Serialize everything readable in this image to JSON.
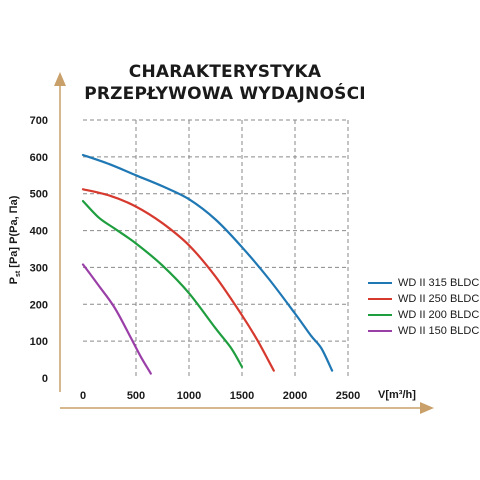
{
  "chart_data": {
    "type": "line",
    "title_lines": [
      "CHARAKTERYSTYKA",
      "PRZEPŁYWOWA WYDAJNOŚCI"
    ],
    "xlabel": "V[m³/h]",
    "ylabel_main": "P",
    "ylabel_sub": "st",
    "ylabel_rest": "[Pa] P(Pa, Па)",
    "xlim": [
      0,
      2500
    ],
    "ylim": [
      0,
      700
    ],
    "x_ticks": [
      0,
      500,
      1000,
      1500,
      2000,
      2500
    ],
    "y_ticks": [
      0,
      100,
      200,
      300,
      400,
      500,
      600,
      700
    ],
    "grid": true,
    "legend_position": "right",
    "series": [
      {
        "name": "WD II 315 BLDC",
        "color": "#1f78b4",
        "points": [
          [
            0,
            605
          ],
          [
            250,
            580
          ],
          [
            500,
            550
          ],
          [
            750,
            520
          ],
          [
            1000,
            485
          ],
          [
            1250,
            430
          ],
          [
            1500,
            355
          ],
          [
            1750,
            270
          ],
          [
            2000,
            175
          ],
          [
            2150,
            115
          ],
          [
            2250,
            80
          ],
          [
            2350,
            20
          ]
        ]
      },
      {
        "name": "WD II 250 BLDC",
        "color": "#d63a2f",
        "points": [
          [
            0,
            512
          ],
          [
            250,
            495
          ],
          [
            500,
            465
          ],
          [
            750,
            420
          ],
          [
            1000,
            360
          ],
          [
            1250,
            275
          ],
          [
            1500,
            170
          ],
          [
            1650,
            100
          ],
          [
            1800,
            20
          ]
        ]
      },
      {
        "name": "WD II 200 BLDC",
        "color": "#1f9e3f",
        "points": [
          [
            0,
            480
          ],
          [
            150,
            435
          ],
          [
            300,
            405
          ],
          [
            500,
            365
          ],
          [
            750,
            305
          ],
          [
            1000,
            230
          ],
          [
            1250,
            135
          ],
          [
            1400,
            80
          ],
          [
            1500,
            30
          ]
        ]
      },
      {
        "name": "WD II 150 BLDC",
        "color": "#9b3fa8",
        "points": [
          [
            0,
            308
          ],
          [
            150,
            250
          ],
          [
            300,
            190
          ],
          [
            450,
            110
          ],
          [
            550,
            55
          ],
          [
            640,
            12
          ]
        ]
      }
    ]
  }
}
